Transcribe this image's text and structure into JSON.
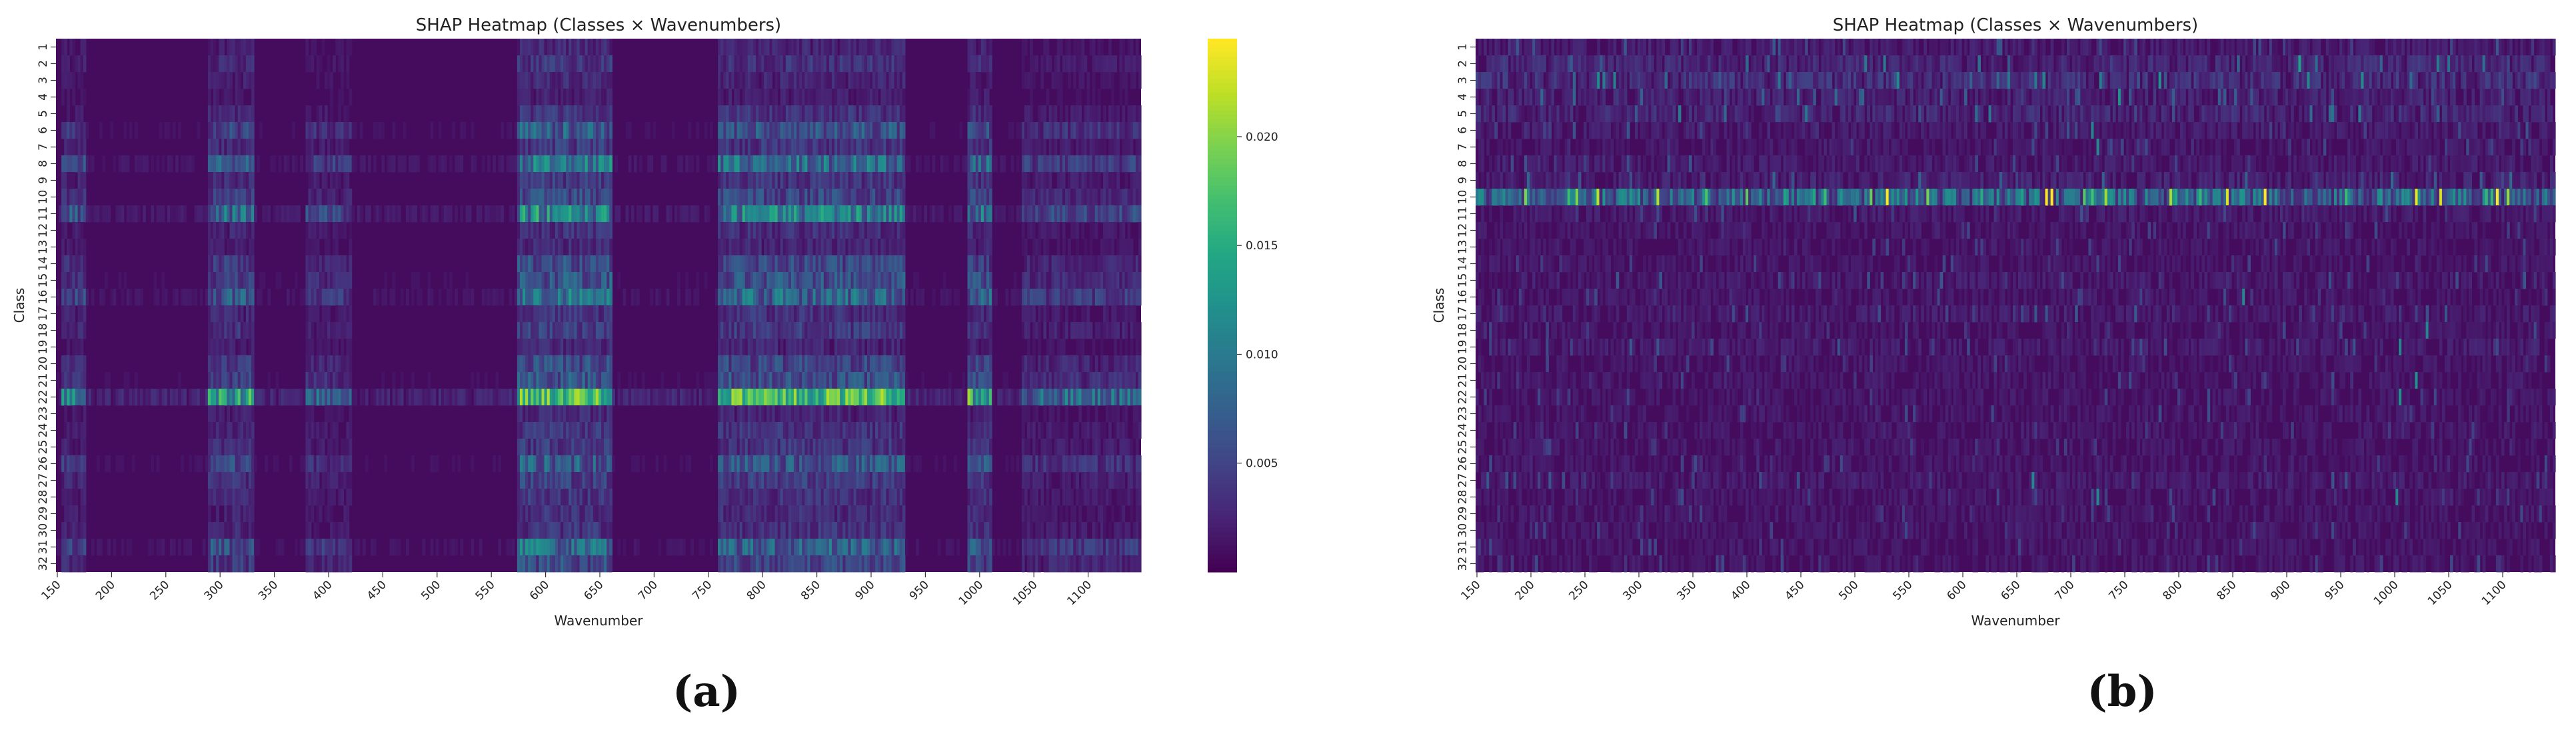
{
  "chart_data": [
    {
      "id": "a",
      "type": "heatmap",
      "title": "SHAP Heatmap (Classes × Wavenumbers)",
      "xlabel": "Wavenumber",
      "ylabel": "Class",
      "x_range": [
        150,
        1150
      ],
      "xticks": [
        150,
        200,
        250,
        300,
        350,
        400,
        450,
        500,
        550,
        600,
        650,
        700,
        750,
        800,
        850,
        900,
        950,
        1000,
        1050,
        1100
      ],
      "rows": [
        "1",
        "2",
        "3",
        "4",
        "5",
        "6",
        "7",
        "8",
        "9",
        "10",
        "11",
        "12",
        "13",
        "14",
        "15",
        "16",
        "17",
        "18",
        "19",
        "20",
        "21",
        "22",
        "23",
        "24",
        "25",
        "26",
        "27",
        "28",
        "29",
        "30",
        "31",
        "32"
      ],
      "colormap": "viridis",
      "vmin": 0.0,
      "vmax": 0.0245,
      "colorbar_ticks": [
        "0.005",
        "0.010",
        "0.015",
        "0.020"
      ],
      "colorbar_values": [
        0.005,
        0.01,
        0.015,
        0.02
      ],
      "row_strength": [
        0.15,
        0.2,
        0.15,
        0.12,
        0.2,
        0.38,
        0.22,
        0.5,
        0.22,
        0.3,
        0.6,
        0.18,
        0.15,
        0.3,
        0.35,
        0.48,
        0.2,
        0.25,
        0.15,
        0.3,
        0.35,
        0.95,
        0.15,
        0.2,
        0.22,
        0.38,
        0.25,
        0.2,
        0.18,
        0.2,
        0.45,
        0.3
      ],
      "hot_bands": [
        {
          "from": 155,
          "to": 175,
          "gain": 0.6
        },
        {
          "from": 290,
          "to": 330,
          "gain": 0.8
        },
        {
          "from": 380,
          "to": 420,
          "gain": 0.5
        },
        {
          "from": 575,
          "to": 660,
          "gain": 1.1
        },
        {
          "from": 760,
          "to": 930,
          "gain": 1.0
        },
        {
          "from": 990,
          "to": 1010,
          "gain": 0.9
        },
        {
          "from": 1040,
          "to": 1150,
          "gain": 0.5
        }
      ],
      "caption": "(a)"
    },
    {
      "id": "b",
      "type": "heatmap",
      "title": "SHAP Heatmap (Classes × Wavenumbers)",
      "xlabel": "Wavenumber",
      "ylabel": "Class",
      "x_range": [
        150,
        1150
      ],
      "xticks": [
        150,
        200,
        250,
        300,
        350,
        400,
        450,
        500,
        550,
        600,
        650,
        700,
        750,
        800,
        850,
        900,
        950,
        1000,
        1050,
        1100
      ],
      "rows": [
        "1",
        "2",
        "3",
        "4",
        "5",
        "6",
        "7",
        "8",
        "9",
        "10",
        "11",
        "12",
        "13",
        "14",
        "15",
        "16",
        "17",
        "18",
        "19",
        "20",
        "21",
        "22",
        "23",
        "24",
        "25",
        "26",
        "27",
        "28",
        "29",
        "30",
        "31",
        "32"
      ],
      "colormap": "viridis",
      "colorbar": false,
      "row_strength": [
        0.12,
        0.18,
        0.22,
        0.15,
        0.18,
        0.12,
        0.1,
        0.12,
        0.15,
        0.55,
        0.12,
        0.1,
        0.1,
        0.1,
        0.12,
        0.1,
        0.12,
        0.1,
        0.12,
        0.1,
        0.1,
        0.1,
        0.1,
        0.1,
        0.1,
        0.1,
        0.12,
        0.1,
        0.1,
        0.1,
        0.1,
        0.1
      ],
      "spots": [
        {
          "row": 10,
          "x": 262,
          "v": 0.9
        },
        {
          "row": 10,
          "x": 400,
          "v": 0.75
        },
        {
          "row": 10,
          "x": 720,
          "v": 0.7
        },
        {
          "row": 10,
          "x": 845,
          "v": 0.95
        },
        {
          "row": 10,
          "x": 655,
          "v": 0.55
        },
        {
          "row": 10,
          "x": 540,
          "v": 0.5
        },
        {
          "row": 10,
          "x": 330,
          "v": 0.45
        },
        {
          "row": 10,
          "x": 1010,
          "v": 0.45
        },
        {
          "row": 2,
          "x": 912,
          "v": 0.55
        },
        {
          "row": 4,
          "x": 745,
          "v": 0.5
        },
        {
          "row": 6,
          "x": 720,
          "v": 0.45
        },
        {
          "row": 7,
          "x": 725,
          "v": 0.45
        },
        {
          "row": 16,
          "x": 860,
          "v": 0.45
        },
        {
          "row": 18,
          "x": 1030,
          "v": 0.45
        },
        {
          "row": 19,
          "x": 1005,
          "v": 0.45
        },
        {
          "row": 21,
          "x": 1020,
          "v": 0.5
        },
        {
          "row": 22,
          "x": 1005,
          "v": 0.5
        },
        {
          "row": 28,
          "x": 1002,
          "v": 0.45
        },
        {
          "row": 27,
          "x": 665,
          "v": 0.45
        },
        {
          "row": 28,
          "x": 725,
          "v": 0.45
        }
      ],
      "caption": "(b)"
    }
  ]
}
